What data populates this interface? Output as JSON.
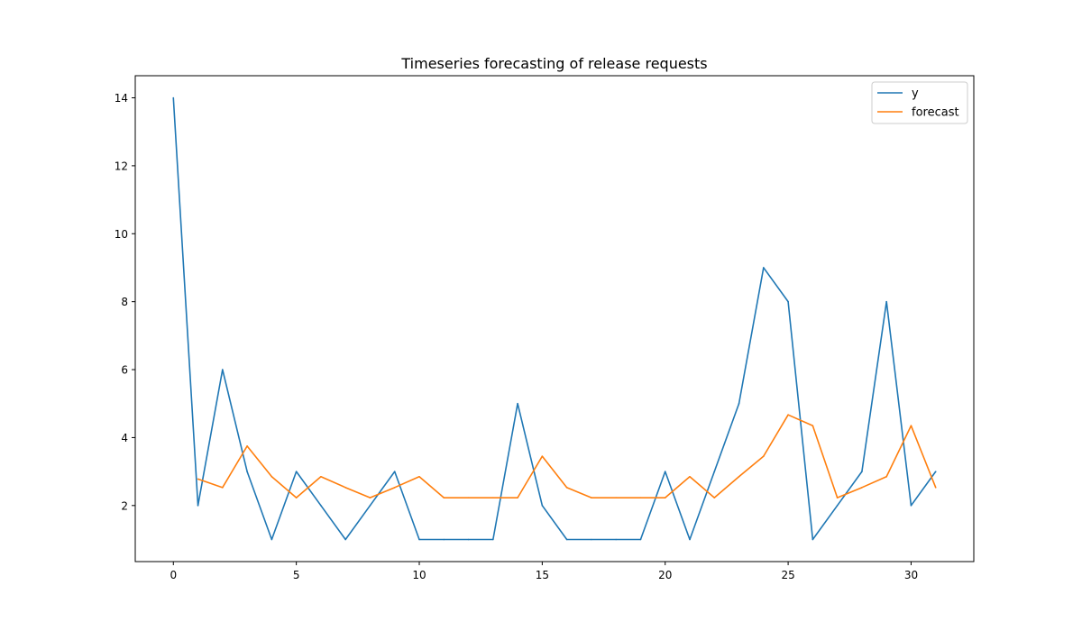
{
  "chart_data": {
    "type": "line",
    "title": "Timeseries forecasting of release requests",
    "xlabel": "",
    "ylabel": "",
    "xlim": [
      -1.55,
      32.55
    ],
    "ylim": [
      0.35,
      14.65
    ],
    "x_ticks": [
      0,
      5,
      10,
      15,
      20,
      25,
      30
    ],
    "y_ticks": [
      2,
      4,
      6,
      8,
      10,
      12,
      14
    ],
    "grid": false,
    "legend_position": "top-right",
    "series": [
      {
        "name": "y",
        "color": "#1f77b4",
        "x": [
          0,
          1,
          2,
          3,
          4,
          5,
          6,
          7,
          8,
          9,
          10,
          11,
          12,
          13,
          14,
          15,
          16,
          17,
          18,
          19,
          20,
          21,
          22,
          23,
          24,
          25,
          26,
          27,
          28,
          29,
          30,
          31
        ],
        "values": [
          14,
          2,
          6,
          3,
          1,
          3,
          2,
          1,
          2,
          3,
          1,
          1,
          1,
          1,
          5,
          2,
          1,
          1,
          1,
          1,
          3,
          1,
          3,
          5,
          9,
          8,
          1,
          2,
          3,
          8,
          2,
          3
        ]
      },
      {
        "name": "forecast",
        "color": "#ff7f0e",
        "x": [
          1,
          2,
          3,
          4,
          5,
          6,
          7,
          8,
          9,
          10,
          11,
          12,
          13,
          14,
          15,
          16,
          17,
          18,
          19,
          20,
          21,
          22,
          23,
          24,
          25,
          26,
          27,
          28,
          29,
          30,
          31
        ],
        "values": [
          2.78,
          2.53,
          3.75,
          2.85,
          2.23,
          2.85,
          2.53,
          2.23,
          2.53,
          2.85,
          2.23,
          2.23,
          2.23,
          2.23,
          3.45,
          2.53,
          2.23,
          2.23,
          2.23,
          2.23,
          2.85,
          2.23,
          2.85,
          3.45,
          4.67,
          4.35,
          2.23,
          2.53,
          2.85,
          4.35,
          2.53
        ]
      }
    ]
  }
}
